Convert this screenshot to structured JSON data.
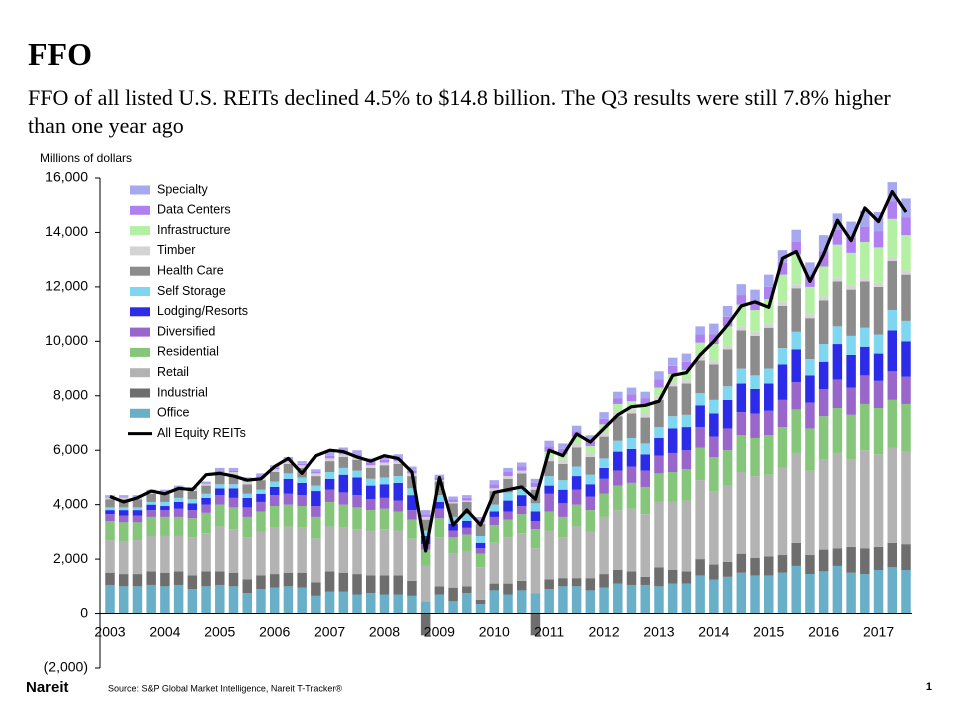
{
  "chart_data": {
    "type": "bar",
    "title": "FFO",
    "subtitle": "FFO of all listed U.S. REITs declined 4.5% to $14.8 billion. The Q3 results were still 7.8% higher than one year ago",
    "y_label": "Millions of dollars",
    "stacked": true,
    "legend": "upper left",
    "categories": [
      "2003",
      null,
      null,
      null,
      "2004",
      null,
      null,
      null,
      "2005",
      null,
      null,
      null,
      "2006",
      null,
      null,
      null,
      "2007",
      null,
      null,
      null,
      "2008",
      null,
      null,
      null,
      "2009",
      null,
      null,
      null,
      "2010",
      null,
      null,
      null,
      "2011",
      null,
      null,
      null,
      "2012",
      null,
      null,
      null,
      "2013",
      null,
      null,
      null,
      "2014",
      null,
      null,
      null,
      "2015",
      null,
      null,
      null,
      "2016",
      null,
      null,
      null,
      "2017",
      null,
      null
    ],
    "ylim": [
      -2000,
      16000
    ],
    "yticks": [
      {
        "value": -2000,
        "label": "(2,000)"
      },
      0,
      {
        "value": 2000,
        "label": "2,000"
      },
      {
        "value": 4000,
        "label": "4,000"
      },
      {
        "value": 6000,
        "label": "6,000"
      },
      {
        "value": 8000,
        "label": "8,000"
      },
      {
        "value": 10000,
        "label": "10,000"
      },
      {
        "value": 12000,
        "label": "12,000"
      },
      {
        "value": 14000,
        "label": "14,000"
      },
      {
        "value": 16000,
        "label": "16,000"
      }
    ],
    "series": [
      {
        "name": "Office",
        "color": "#6aafc8",
        "values": [
          1050,
          1000,
          1000,
          1050,
          1000,
          1050,
          900,
          1000,
          1050,
          1000,
          750,
          900,
          950,
          1000,
          950,
          650,
          800,
          800,
          700,
          750,
          700,
          700,
          650,
          450,
          700,
          450,
          750,
          350,
          850,
          700,
          850,
          750,
          900,
          1000,
          1000,
          850,
          950,
          1100,
          1050,
          1050,
          1000,
          1100,
          1100,
          1400,
          1250,
          1350,
          1500,
          1400,
          1400,
          1500,
          1750,
          1450,
          1550,
          1750,
          1500,
          1450,
          1600,
          1700,
          1600
        ]
      },
      {
        "name": "Industrial",
        "color": "#6e6e6e",
        "values": [
          450,
          450,
          450,
          500,
          500,
          500,
          500,
          550,
          500,
          500,
          500,
          500,
          500,
          500,
          550,
          500,
          750,
          700,
          750,
          650,
          700,
          700,
          550,
          -800,
          300,
          500,
          250,
          150,
          250,
          400,
          350,
          -800,
          350,
          300,
          300,
          450,
          500,
          500,
          500,
          300,
          700,
          500,
          450,
          600,
          550,
          550,
          700,
          650,
          700,
          650,
          850,
          700,
          800,
          650,
          950,
          950,
          850,
          900,
          950
        ]
      },
      {
        "name": "Retail",
        "color": "#b3b3b3",
        "values": [
          1200,
          1200,
          1250,
          1300,
          1350,
          1300,
          1400,
          1400,
          1650,
          1600,
          1550,
          1600,
          1700,
          1700,
          1650,
          1600,
          1650,
          1650,
          1650,
          1650,
          1700,
          1650,
          1550,
          1300,
          1800,
          1250,
          1300,
          1200,
          1500,
          1700,
          1750,
          1650,
          1800,
          1500,
          1900,
          1700,
          2100,
          2200,
          2300,
          2300,
          2400,
          2500,
          2600,
          2900,
          2700,
          2800,
          3000,
          3000,
          3000,
          3200,
          3300,
          3100,
          3300,
          3500,
          3200,
          3600,
          3400,
          3500,
          3400
        ]
      },
      {
        "name": "Residential",
        "color": "#86c67a",
        "values": [
          700,
          700,
          650,
          700,
          700,
          700,
          700,
          750,
          800,
          800,
          750,
          750,
          800,
          800,
          800,
          800,
          900,
          850,
          800,
          750,
          750,
          700,
          700,
          600,
          700,
          600,
          600,
          500,
          650,
          650,
          700,
          700,
          700,
          750,
          800,
          800,
          850,
          900,
          950,
          1000,
          1050,
          1100,
          1150,
          1200,
          1250,
          1300,
          1350,
          1400,
          1450,
          1500,
          1600,
          1550,
          1600,
          1650,
          1650,
          1700,
          1700,
          1750,
          1750
        ]
      },
      {
        "name": "Diversified",
        "color": "#9966cc",
        "values": [
          250,
          250,
          250,
          250,
          250,
          300,
          300,
          300,
          350,
          350,
          350,
          350,
          400,
          400,
          400,
          400,
          450,
          450,
          450,
          400,
          400,
          400,
          350,
          200,
          350,
          250,
          250,
          200,
          300,
          300,
          300,
          300,
          650,
          500,
          550,
          500,
          550,
          550,
          600,
          600,
          650,
          700,
          700,
          750,
          750,
          800,
          850,
          900,
          900,
          1000,
          1000,
          950,
          1000,
          1050,
          1000,
          1050,
          1000,
          1050,
          1000
        ]
      },
      {
        "name": "Lodging/Resorts",
        "color": "#2b2be8",
        "values": [
          150,
          200,
          200,
          200,
          150,
          250,
          250,
          250,
          250,
          350,
          350,
          300,
          300,
          550,
          450,
          550,
          400,
          650,
          650,
          500,
          500,
          650,
          550,
          300,
          250,
          250,
          250,
          200,
          200,
          400,
          400,
          350,
          300,
          500,
          500,
          450,
          400,
          700,
          650,
          600,
          650,
          900,
          850,
          800,
          850,
          1050,
          1050,
          900,
          1000,
          1300,
          1200,
          1000,
          1000,
          1300,
          1200,
          1050,
          1000,
          1500,
          1300
        ]
      },
      {
        "name": "Self Storage",
        "color": "#7fd6f0",
        "values": [
          100,
          100,
          100,
          100,
          150,
          150,
          150,
          150,
          150,
          150,
          150,
          150,
          200,
          200,
          200,
          200,
          250,
          250,
          250,
          250,
          250,
          250,
          250,
          200,
          250,
          250,
          250,
          250,
          250,
          300,
          300,
          300,
          350,
          350,
          350,
          350,
          350,
          400,
          400,
          400,
          400,
          450,
          450,
          450,
          500,
          500,
          550,
          500,
          550,
          600,
          650,
          600,
          650,
          650,
          700,
          700,
          700,
          750,
          750
        ]
      },
      {
        "name": "Health Care",
        "color": "#8c8c8c",
        "values": [
          300,
          300,
          300,
          300,
          300,
          300,
          300,
          300,
          350,
          350,
          350,
          350,
          350,
          350,
          350,
          350,
          400,
          400,
          400,
          400,
          450,
          450,
          450,
          400,
          500,
          500,
          450,
          450,
          500,
          500,
          500,
          500,
          550,
          600,
          700,
          650,
          800,
          900,
          900,
          950,
          1000,
          1100,
          1150,
          1200,
          1300,
          1350,
          1400,
          1450,
          1500,
          1550,
          1600,
          1500,
          1600,
          1650,
          1700,
          1700,
          1750,
          1800,
          1700
        ]
      },
      {
        "name": "Timber",
        "color": "#d4d4d4",
        "values": [
          50,
          50,
          50,
          50,
          50,
          50,
          50,
          50,
          100,
          100,
          100,
          100,
          100,
          100,
          100,
          100,
          100,
          100,
          100,
          100,
          100,
          100,
          100,
          100,
          50,
          50,
          50,
          50,
          100,
          100,
          100,
          100,
          150,
          150,
          150,
          150,
          150,
          150,
          150,
          150,
          150,
          150,
          150,
          150,
          150,
          150,
          150,
          150,
          150,
          150,
          150,
          150,
          150,
          150,
          150,
          150,
          150,
          150,
          150
        ]
      },
      {
        "name": "Infrastructure",
        "color": "#b3f0a3",
        "values": [
          0,
          0,
          0,
          0,
          0,
          0,
          0,
          0,
          0,
          0,
          0,
          0,
          0,
          0,
          0,
          0,
          0,
          0,
          0,
          0,
          0,
          0,
          0,
          0,
          0,
          0,
          0,
          0,
          0,
          0,
          0,
          0,
          200,
          200,
          250,
          250,
          300,
          300,
          300,
          300,
          300,
          300,
          350,
          500,
          600,
          700,
          800,
          800,
          900,
          1000,
          1100,
          1000,
          1100,
          1200,
          1200,
          1300,
          1300,
          1400,
          1300
        ]
      },
      {
        "name": "Data Centers",
        "color": "#b080f0",
        "values": [
          0,
          0,
          0,
          0,
          0,
          0,
          0,
          0,
          50,
          50,
          50,
          50,
          50,
          50,
          50,
          50,
          100,
          100,
          100,
          100,
          100,
          100,
          100,
          100,
          100,
          100,
          100,
          100,
          150,
          150,
          150,
          150,
          200,
          200,
          200,
          200,
          200,
          200,
          250,
          250,
          300,
          300,
          300,
          300,
          350,
          350,
          350,
          350,
          450,
          450,
          450,
          450,
          550,
          550,
          550,
          550,
          600,
          650,
          650
        ]
      },
      {
        "name": "Specialty",
        "color": "#a8a8f0",
        "values": [
          100,
          100,
          100,
          100,
          100,
          100,
          100,
          100,
          100,
          100,
          100,
          100,
          100,
          100,
          100,
          100,
          150,
          150,
          150,
          150,
          150,
          150,
          150,
          150,
          100,
          100,
          100,
          100,
          150,
          150,
          150,
          150,
          200,
          200,
          200,
          200,
          250,
          250,
          250,
          250,
          300,
          300,
          300,
          300,
          400,
          400,
          400,
          400,
          450,
          450,
          450,
          450,
          600,
          600,
          600,
          600,
          700,
          700,
          700
        ]
      },
      {
        "name": "All Equity REITs",
        "type": "line",
        "color": "#000000",
        "values": [
          4300,
          4100,
          4250,
          4500,
          4400,
          4600,
          4550,
          5100,
          5150,
          5050,
          4900,
          4950,
          5400,
          5700,
          5150,
          5800,
          6000,
          5950,
          5750,
          5600,
          5800,
          5700,
          5200,
          2300,
          5000,
          3250,
          3800,
          3250,
          4450,
          4550,
          4650,
          4200,
          6000,
          5800,
          6600,
          6300,
          6800,
          7300,
          7600,
          7650,
          7800,
          8750,
          8850,
          9500,
          10000,
          10600,
          11300,
          11450,
          11250,
          13050,
          13300,
          12200,
          13200,
          14450,
          13700,
          14900,
          14400,
          15500,
          14750
        ]
      }
    ]
  },
  "footer": {
    "logo": "Nareit",
    "source": "Source: S&P Global Market Intelligence, Nareit T-Tracker®",
    "page": "1"
  }
}
